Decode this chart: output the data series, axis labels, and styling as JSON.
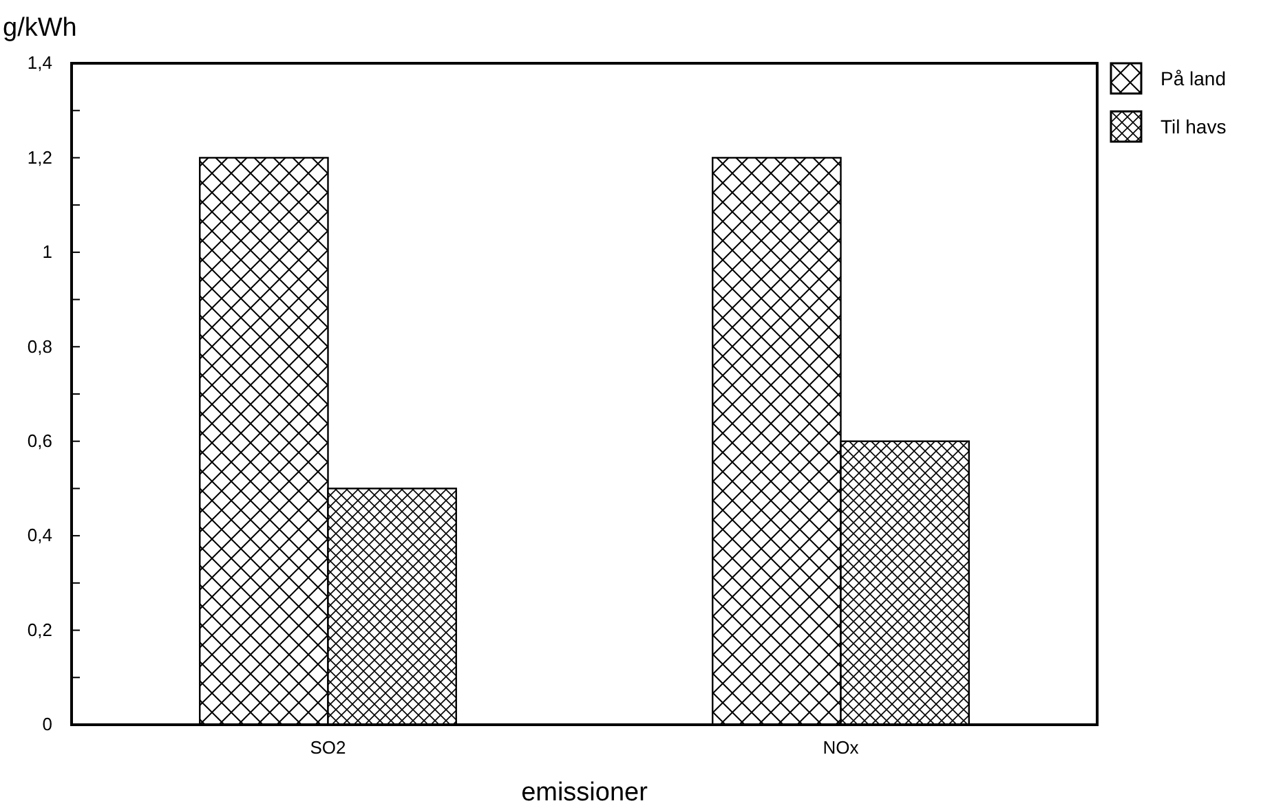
{
  "chart_data": {
    "type": "bar",
    "xlabel": "emissioner",
    "ylabel": "g/kWh",
    "categories": [
      "SO2",
      "NOx"
    ],
    "series": [
      {
        "name": "På land",
        "color": "#000000",
        "values": [
          1.2,
          1.2
        ]
      },
      {
        "name": "Til havs",
        "color": "#000000",
        "values": [
          0.5,
          0.6
        ]
      }
    ],
    "ylim": [
      0,
      1.4
    ],
    "yticks": [
      0,
      {
        "value": 0.1,
        "label": null
      },
      {
        "value": 0.2,
        "label": "0,2"
      },
      {
        "value": 0.3,
        "label": null
      },
      {
        "value": 0.4,
        "label": "0,4"
      },
      {
        "value": 0.5,
        "label": null
      },
      {
        "value": 0.6,
        "label": "0,6"
      },
      {
        "value": 0.7,
        "label": null
      },
      {
        "value": 0.8,
        "label": "0,8"
      },
      {
        "value": 0.9,
        "label": null
      },
      1,
      {
        "value": 1.1,
        "label": null
      },
      {
        "value": 1.2,
        "label": "1,2"
      },
      {
        "value": 1.3,
        "label": null
      },
      {
        "value": 1.4,
        "label": "1,4"
      }
    ],
    "grid": false,
    "legend": "top right"
  }
}
